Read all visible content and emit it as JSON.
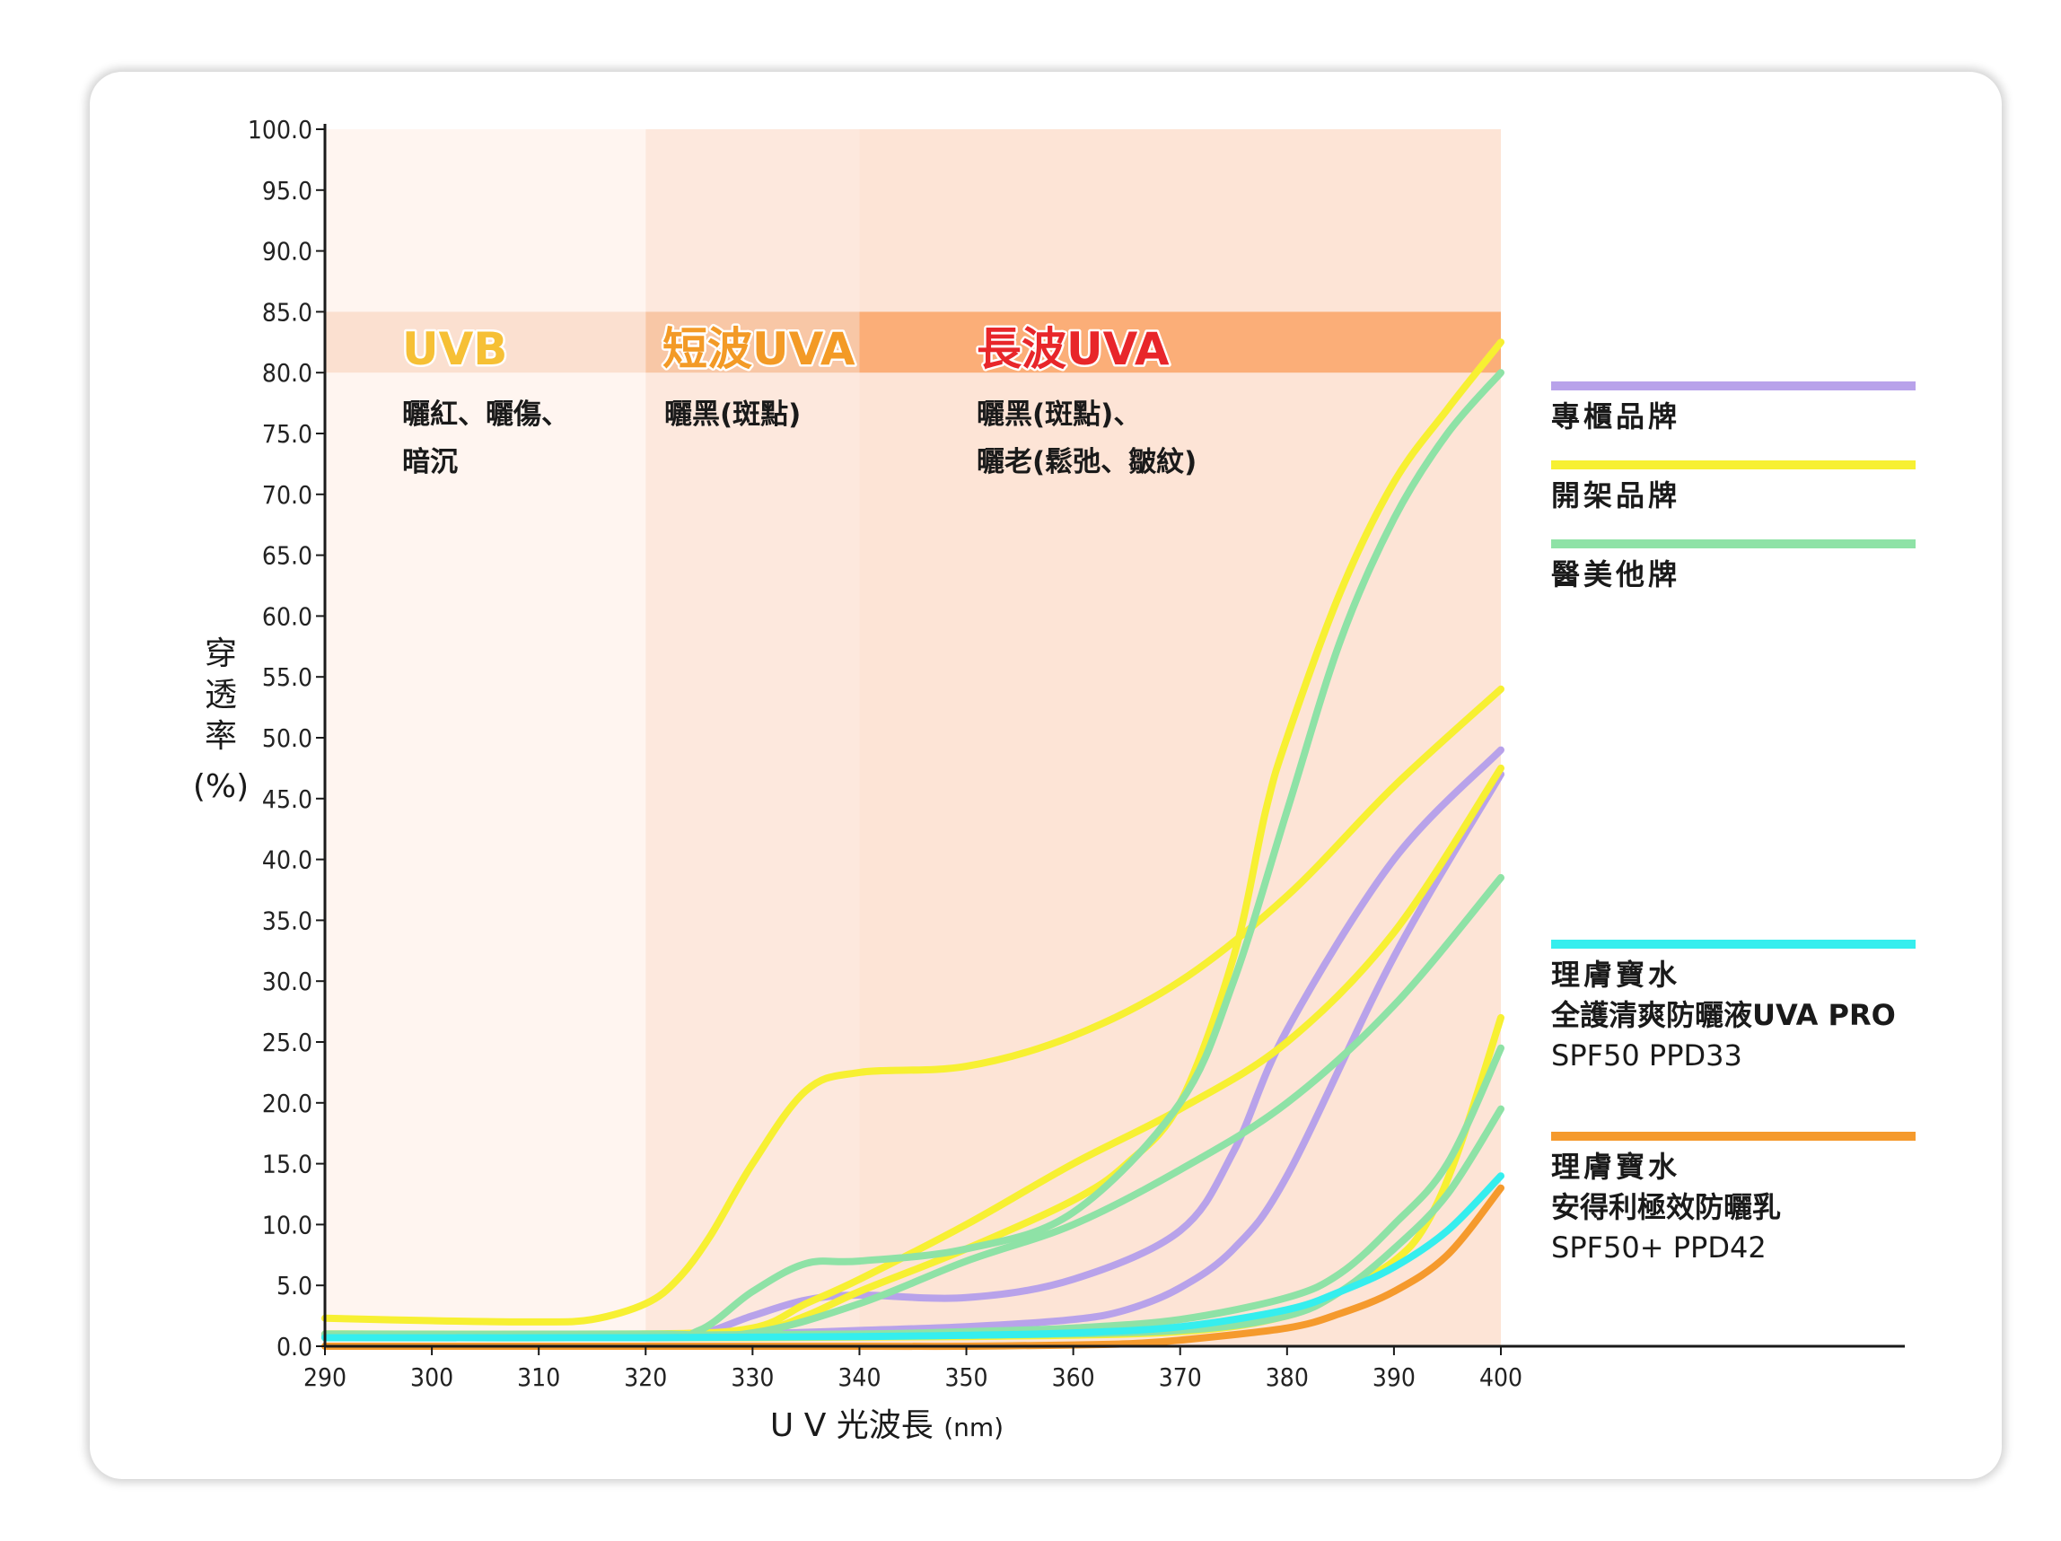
{
  "chart_data": {
    "type": "line",
    "title": "",
    "xlabel": "U V 光波長",
    "xlabel_unit": "(nm)",
    "ylabel": [
      "穿",
      "透",
      "率"
    ],
    "ylabel_unit": "(%)",
    "xlim": [
      290,
      400
    ],
    "ylim": [
      0,
      100
    ],
    "x_ticks": [
      "290",
      "300",
      "310",
      "320",
      "330",
      "340",
      "350",
      "360",
      "370",
      "380",
      "390",
      "400"
    ],
    "y_ticks": [
      "0.0",
      "5.0",
      "10.0",
      "15.0",
      "20.0",
      "25.0",
      "30.0",
      "35.0",
      "40.0",
      "45.0",
      "50.0",
      "55.0",
      "60.0",
      "65.0",
      "70.0",
      "75.0",
      "80.0",
      "85.0",
      "90.0",
      "95.0",
      "100.0"
    ],
    "regions": [
      {
        "name": "UVB",
        "from": 290,
        "to": 320,
        "color": "#f6c035",
        "desc": [
          "曬紅、曬傷、",
          "暗沉"
        ]
      },
      {
        "name": "短波UVA",
        "from": 320,
        "to": 340,
        "color": "#f39a26",
        "desc": [
          "曬黑(斑點)"
        ]
      },
      {
        "name": "長波UVA",
        "from": 340,
        "to": 400,
        "color": "#e8262a",
        "desc": [
          "曬黑(斑點)、",
          "曬老(鬆弛、皺紋)"
        ]
      }
    ],
    "band": [
      80,
      85
    ],
    "legend": [
      {
        "label_lines": [
          "專櫃品牌"
        ],
        "color": "#b8a2ea"
      },
      {
        "label_lines": [
          "開架品牌"
        ],
        "color": "#f7f032"
      },
      {
        "label_lines": [
          "醫美他牌"
        ],
        "color": "#8ee2a6"
      },
      {
        "label_lines": [
          "理膚寶水",
          "全護清爽防曬液UVA PRO",
          "SPF50  PPD33"
        ],
        "color": "#35eeee"
      },
      {
        "label_lines": [
          "理膚寶水",
          "安得利極效防曬乳",
          "SPF50+  PPD42"
        ],
        "color": "#f59a2d"
      }
    ],
    "series": [
      {
        "group": 0,
        "color": "#b8a2ea",
        "x": [
          290,
          320,
          325,
          330,
          335,
          340,
          350,
          360,
          370,
          375,
          380,
          390,
          400
        ],
        "y": [
          0.8,
          0.8,
          1.0,
          2.5,
          3.8,
          4.2,
          4.0,
          5.5,
          9.5,
          16,
          26,
          40,
          49
        ]
      },
      {
        "group": 0,
        "color": "#b8a2ea",
        "x": [
          290,
          320,
          330,
          340,
          350,
          360,
          365,
          370,
          375,
          380,
          390,
          400
        ],
        "y": [
          0.8,
          0.8,
          1.0,
          1.3,
          1.6,
          2.2,
          3.0,
          4.8,
          8,
          14,
          32,
          47
        ]
      },
      {
        "group": 1,
        "color": "#f7f032",
        "x": [
          290,
          300,
          310,
          315,
          320,
          323,
          326,
          330,
          335,
          340,
          350,
          360,
          370,
          380,
          390,
          400
        ],
        "y": [
          2.3,
          2.1,
          2.0,
          2.2,
          3.5,
          5.5,
          9,
          15,
          21,
          22.5,
          23,
          25.5,
          30,
          37,
          46,
          54
        ]
      },
      {
        "group": 1,
        "color": "#f7f032",
        "x": [
          290,
          320,
          330,
          335,
          340,
          350,
          360,
          365,
          370,
          375,
          378,
          380,
          385,
          390,
          395,
          400
        ],
        "y": [
          1.0,
          1.0,
          1.2,
          2.5,
          4.5,
          8,
          12,
          15,
          20,
          32,
          44,
          50,
          62,
          71,
          77,
          82.5
        ]
      },
      {
        "group": 1,
        "color": "#f7f032",
        "x": [
          290,
          320,
          330,
          335,
          340,
          350,
          360,
          370,
          380,
          390,
          400
        ],
        "y": [
          1.0,
          1.0,
          1.5,
          3.5,
          5.5,
          10,
          15,
          19.5,
          25,
          34,
          47.5
        ]
      },
      {
        "group": 1,
        "color": "#f7f032",
        "x": [
          290,
          320,
          350,
          370,
          380,
          385,
          390,
          393,
          396,
          400
        ],
        "y": [
          0.7,
          0.7,
          0.8,
          1.2,
          2.5,
          4.5,
          7,
          10,
          16,
          27
        ]
      },
      {
        "group": 2,
        "color": "#8ee2a6",
        "x": [
          290,
          320,
          325,
          330,
          335,
          340,
          350,
          360,
          370,
          375,
          380,
          385,
          390,
          395,
          400
        ],
        "y": [
          1.0,
          1.0,
          1.3,
          4.5,
          6.8,
          7.0,
          8,
          11,
          20,
          30,
          44,
          58,
          68,
          75,
          80
        ]
      },
      {
        "group": 2,
        "color": "#8ee2a6",
        "x": [
          290,
          320,
          330,
          340,
          350,
          360,
          370,
          380,
          390,
          400
        ],
        "y": [
          0.9,
          0.9,
          1.1,
          3.5,
          7,
          10,
          14.5,
          20,
          28,
          38.5
        ]
      },
      {
        "group": 2,
        "color": "#8ee2a6",
        "x": [
          290,
          320,
          340,
          350,
          360,
          370,
          380,
          385,
          390,
          395,
          400
        ],
        "y": [
          0.9,
          0.9,
          1.0,
          1.2,
          1.5,
          2.2,
          4,
          6,
          10,
          15,
          24.5
        ]
      },
      {
        "group": 2,
        "color": "#8ee2a6",
        "x": [
          290,
          320,
          350,
          370,
          380,
          385,
          390,
          395,
          400
        ],
        "y": [
          0.8,
          0.8,
          0.9,
          1.3,
          2.5,
          4.5,
          8,
          12.5,
          19.5
        ]
      },
      {
        "group": 3,
        "color": "#35eeee",
        "x": [
          290,
          320,
          340,
          350,
          360,
          370,
          380,
          385,
          390,
          395,
          400
        ],
        "y": [
          0.7,
          0.7,
          0.8,
          0.9,
          1.1,
          1.6,
          3,
          4.5,
          6.5,
          9.5,
          14
        ]
      },
      {
        "group": 4,
        "color": "#f59a2d",
        "x": [
          290,
          320,
          340,
          350,
          360,
          365,
          370,
          380,
          385,
          390,
          395,
          400
        ],
        "y": [
          0,
          0,
          0,
          0,
          0.1,
          0.2,
          0.5,
          1.5,
          2.7,
          4.5,
          7.5,
          13
        ]
      }
    ]
  }
}
